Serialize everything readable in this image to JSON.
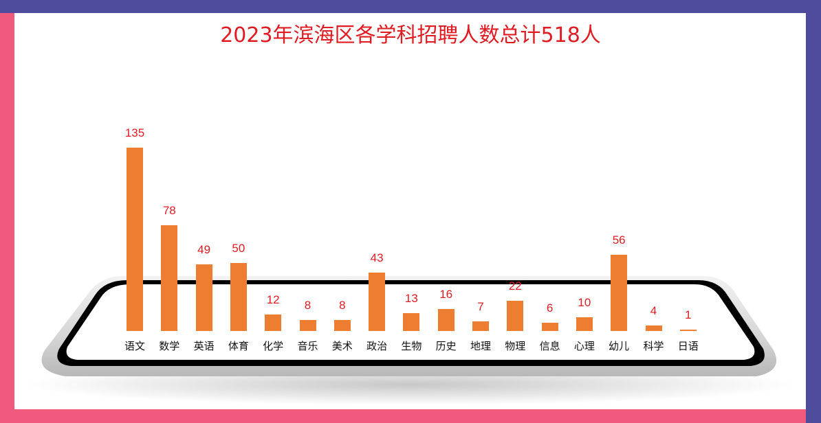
{
  "title": "2023年滨海区各学科招聘人数总计518人",
  "colors": {
    "bar": "#ed7d31",
    "value_label": "#e01b22",
    "title": "#e01b22",
    "frame_blue": "#4f4b9d",
    "frame_pink": "#f05a7d"
  },
  "chart_data": {
    "type": "bar",
    "title": "2023年滨海区各学科招聘人数总计518人",
    "xlabel": "",
    "ylabel": "",
    "categories": [
      "语文",
      "数学",
      "英语",
      "体育",
      "化学",
      "音乐",
      "美术",
      "政治",
      "生物",
      "历史",
      "地理",
      "物理",
      "信息",
      "心理",
      "幼儿",
      "科学",
      "日语"
    ],
    "values": [
      135,
      78,
      49,
      50,
      12,
      8,
      8,
      43,
      13,
      16,
      7,
      22,
      6,
      10,
      56,
      4,
      1
    ],
    "ylim": [
      0,
      140
    ],
    "grid": false,
    "legend": "none",
    "data_labels": true
  }
}
